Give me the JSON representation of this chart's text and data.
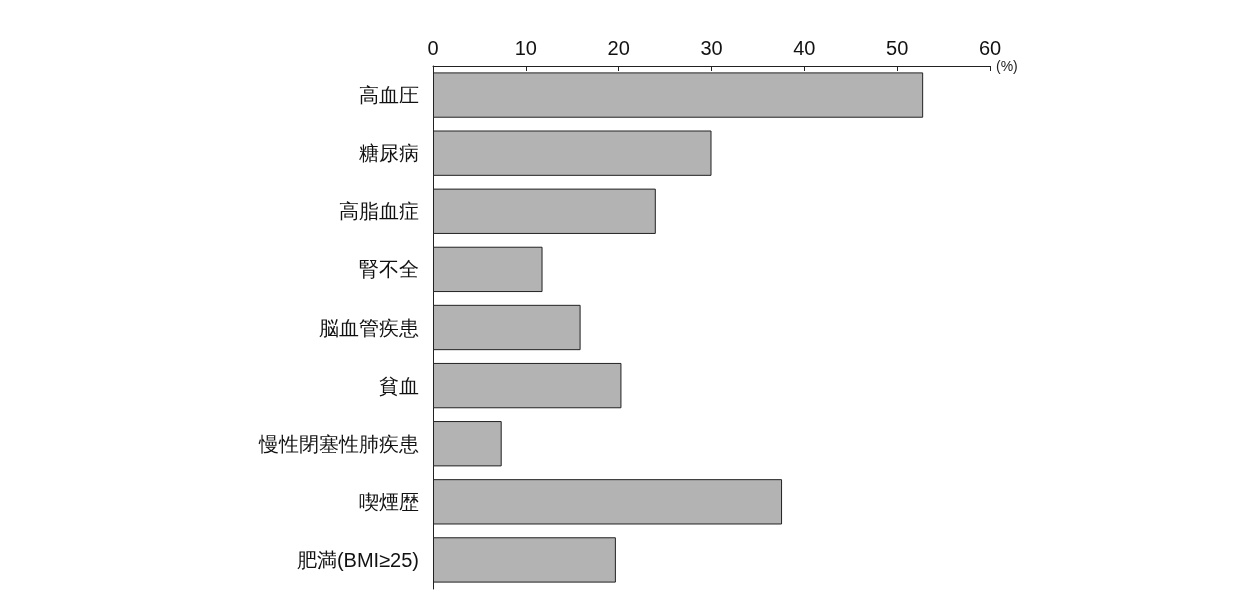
{
  "chart_data": {
    "type": "bar",
    "orientation": "horizontal",
    "xlabel": "(%)",
    "categories": [
      "高血圧",
      "糖尿病",
      "高脂血症",
      "腎不全",
      "脳血管疾患",
      "貧血",
      "慢性閉塞性肺疾患",
      "喫煙歴",
      "肥満(BMI≥25)"
    ],
    "values": [
      52.8,
      30.0,
      24.0,
      11.8,
      15.9,
      20.3,
      7.4,
      37.6,
      19.7
    ],
    "color": "#b3b3b3",
    "xlim": [
      0,
      60
    ],
    "xticks": [
      0,
      10,
      20,
      30,
      40,
      50,
      60
    ],
    "grid": false
  }
}
